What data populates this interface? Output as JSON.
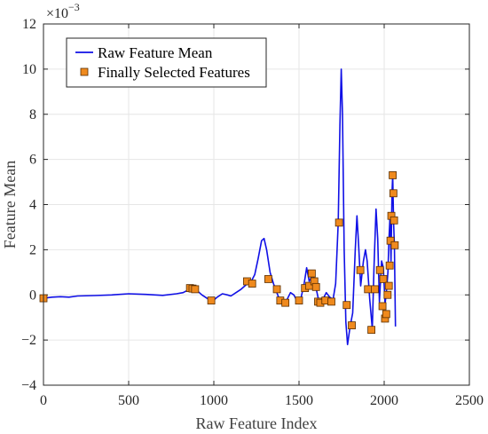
{
  "chart_data": {
    "type": "line",
    "xlabel": "Raw Feature Index",
    "ylabel": "Feature Mean",
    "exponent_label": "×10",
    "exponent_power": "−3",
    "xlim": [
      0,
      2500
    ],
    "ylim": [
      -4,
      12
    ],
    "grid": true,
    "legend_placement": "top-left",
    "x_ticks": [
      "0",
      "500",
      "1000",
      "1500",
      "2000",
      "2500"
    ],
    "y_ticks": [
      "−4",
      "−2",
      "0",
      "2",
      "4",
      "6",
      "8",
      "10",
      "12"
    ],
    "colors": {
      "line": "#1010e6",
      "marker_fill": "#ef8a1e",
      "marker_edge": "#5a2e00",
      "grid": "#e6e6e6",
      "axis": "#262626"
    },
    "series": [
      {
        "name": "Raw Feature Mean",
        "kind": "line",
        "points": [
          [
            0,
            -0.15
          ],
          [
            50,
            -0.1
          ],
          [
            100,
            -0.08
          ],
          [
            150,
            -0.1
          ],
          [
            200,
            -0.05
          ],
          [
            300,
            -0.03
          ],
          [
            400,
            0.0
          ],
          [
            500,
            0.05
          ],
          [
            600,
            0.02
          ],
          [
            700,
            -0.02
          ],
          [
            780,
            0.05
          ],
          [
            820,
            0.1
          ],
          [
            850,
            0.22
          ],
          [
            875,
            0.28
          ],
          [
            900,
            0.2
          ],
          [
            930,
            0.0
          ],
          [
            960,
            -0.15
          ],
          [
            990,
            -0.3
          ],
          [
            1020,
            -0.1
          ],
          [
            1050,
            0.05
          ],
          [
            1080,
            0.0
          ],
          [
            1100,
            -0.05
          ],
          [
            1130,
            0.1
          ],
          [
            1160,
            0.25
          ],
          [
            1190,
            0.45
          ],
          [
            1220,
            0.6
          ],
          [
            1240,
            0.9
          ],
          [
            1260,
            1.6
          ],
          [
            1280,
            2.4
          ],
          [
            1295,
            2.5
          ],
          [
            1310,
            2.0
          ],
          [
            1330,
            1.0
          ],
          [
            1350,
            0.5
          ],
          [
            1370,
            0.1
          ],
          [
            1390,
            -0.3
          ],
          [
            1410,
            -0.4
          ],
          [
            1430,
            -0.2
          ],
          [
            1450,
            0.1
          ],
          [
            1470,
            0.0
          ],
          [
            1490,
            -0.3
          ],
          [
            1510,
            -0.2
          ],
          [
            1530,
            0.5
          ],
          [
            1545,
            1.2
          ],
          [
            1560,
            0.6
          ],
          [
            1580,
            0.9
          ],
          [
            1600,
            0.3
          ],
          [
            1620,
            -0.4
          ],
          [
            1640,
            -0.2
          ],
          [
            1660,
            0.1
          ],
          [
            1680,
            -0.1
          ],
          [
            1700,
            -0.2
          ],
          [
            1715,
            0.5
          ],
          [
            1730,
            3.2
          ],
          [
            1740,
            7.5
          ],
          [
            1748,
            10.0
          ],
          [
            1755,
            8.0
          ],
          [
            1765,
            2.0
          ],
          [
            1775,
            -1.2
          ],
          [
            1785,
            -2.2
          ],
          [
            1800,
            -1.4
          ],
          [
            1815,
            -0.8
          ],
          [
            1830,
            2.0
          ],
          [
            1840,
            3.5
          ],
          [
            1850,
            2.2
          ],
          [
            1862,
            0.4
          ],
          [
            1878,
            1.5
          ],
          [
            1890,
            2.0
          ],
          [
            1900,
            1.5
          ],
          [
            1915,
            -0.2
          ],
          [
            1930,
            -1.5
          ],
          [
            1940,
            1.2
          ],
          [
            1952,
            3.8
          ],
          [
            1962,
            2.5
          ],
          [
            1972,
            -0.3
          ],
          [
            1985,
            1.5
          ],
          [
            1995,
            1.2
          ],
          [
            2005,
            -0.4
          ],
          [
            2015,
            0.3
          ],
          [
            2022,
            1.0
          ],
          [
            2028,
            2.5
          ],
          [
            2034,
            3.4
          ],
          [
            2040,
            1.5
          ],
          [
            2046,
            4.5
          ],
          [
            2050,
            5.3
          ],
          [
            2055,
            3.2
          ],
          [
            2060,
            2.2
          ],
          [
            2066,
            -1.4
          ]
        ]
      },
      {
        "name": "Finally Selected Features",
        "kind": "markers",
        "points": [
          [
            0,
            -0.15
          ],
          [
            860,
            0.3
          ],
          [
            875,
            0.28
          ],
          [
            890,
            0.25
          ],
          [
            985,
            -0.25
          ],
          [
            1195,
            0.6
          ],
          [
            1225,
            0.5
          ],
          [
            1320,
            0.7
          ],
          [
            1370,
            0.25
          ],
          [
            1390,
            -0.25
          ],
          [
            1420,
            -0.35
          ],
          [
            1500,
            -0.25
          ],
          [
            1535,
            0.3
          ],
          [
            1560,
            0.4
          ],
          [
            1575,
            0.95
          ],
          [
            1590,
            0.6
          ],
          [
            1600,
            0.35
          ],
          [
            1612,
            -0.3
          ],
          [
            1625,
            -0.35
          ],
          [
            1655,
            -0.25
          ],
          [
            1690,
            -0.3
          ],
          [
            1735,
            3.2
          ],
          [
            1780,
            -0.45
          ],
          [
            1810,
            -1.35
          ],
          [
            1860,
            1.1
          ],
          [
            1905,
            0.25
          ],
          [
            1925,
            -1.55
          ],
          [
            1945,
            0.25
          ],
          [
            1975,
            1.1
          ],
          [
            1990,
            -0.5
          ],
          [
            1995,
            0.7
          ],
          [
            2005,
            -1.05
          ],
          [
            2012,
            -0.85
          ],
          [
            2020,
            0.0
          ],
          [
            2027,
            0.4
          ],
          [
            2032,
            1.3
          ],
          [
            2037,
            2.4
          ],
          [
            2042,
            3.5
          ],
          [
            2050,
            5.3
          ],
          [
            2054,
            4.5
          ],
          [
            2058,
            3.3
          ],
          [
            2062,
            2.2
          ]
        ]
      }
    ]
  }
}
